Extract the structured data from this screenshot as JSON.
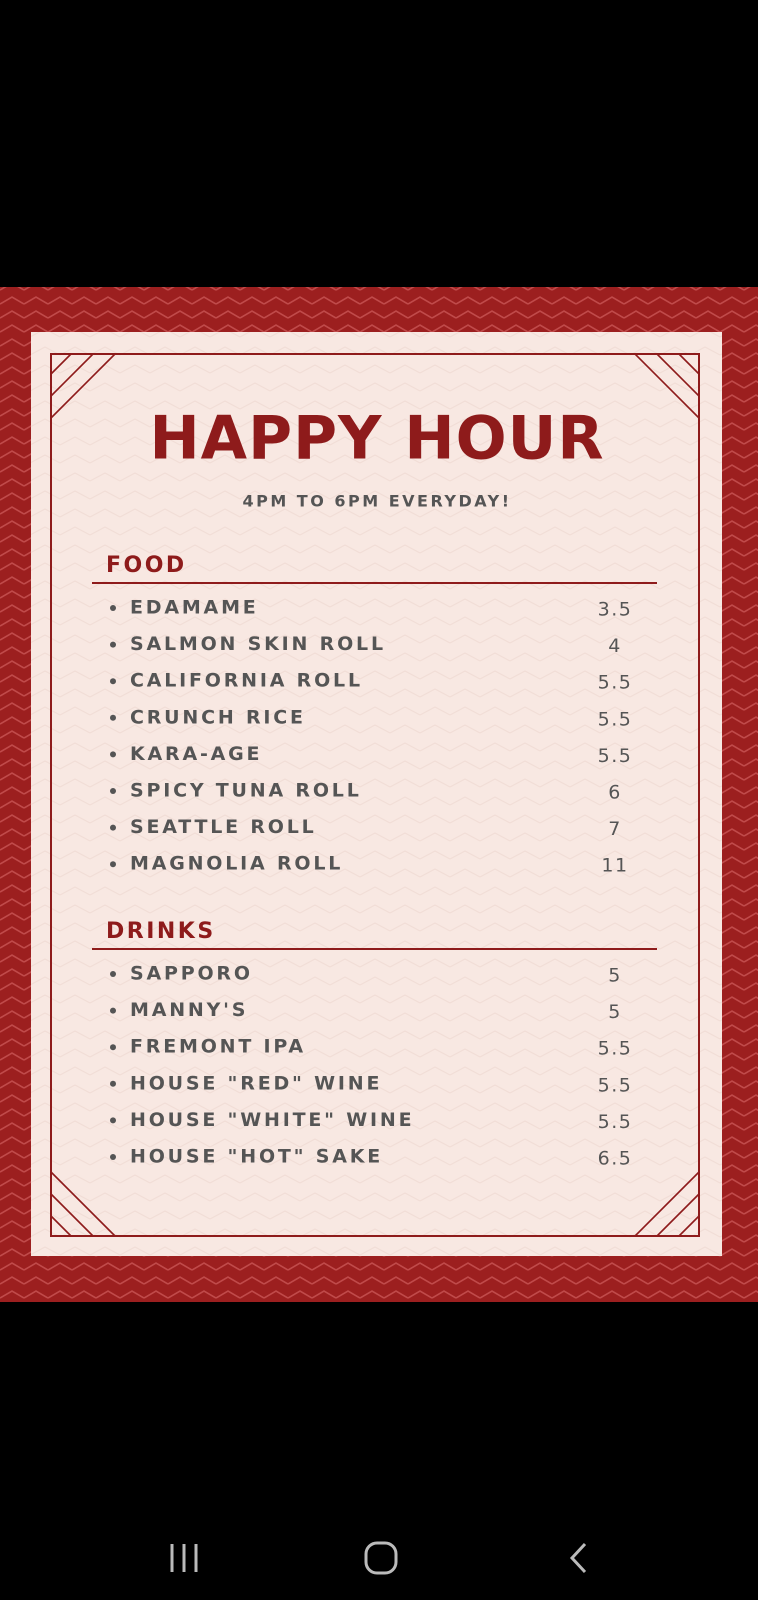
{
  "menu": {
    "title": "HAPPY HOUR",
    "subtitle": "4PM TO 6PM EVERYDAY!",
    "sections": [
      {
        "heading": "FOOD",
        "items": [
          {
            "name": "EDAMAME",
            "price": "3.5"
          },
          {
            "name": "SALMON SKIN ROLL",
            "price": "4"
          },
          {
            "name": "CALIFORNIA ROLL",
            "price": "5.5"
          },
          {
            "name": "CRUNCH RICE",
            "price": "5.5"
          },
          {
            "name": "KARA-AGE",
            "price": "5.5"
          },
          {
            "name": "SPICY TUNA ROLL",
            "price": "6"
          },
          {
            "name": "SEATTLE ROLL",
            "price": "7"
          },
          {
            "name": "MAGNOLIA ROLL",
            "price": "11"
          }
        ]
      },
      {
        "heading": "DRINKS",
        "items": [
          {
            "name": "SAPPORO",
            "price": "5"
          },
          {
            "name": "MANNY'S",
            "price": "5"
          },
          {
            "name": "FREMONT IPA",
            "price": "5.5"
          },
          {
            "name": "HOUSE \"RED\" WINE",
            "price": "5.5"
          },
          {
            "name": "HOUSE \"WHITE\" WINE",
            "price": "5.5"
          },
          {
            "name": "HOUSE \"HOT\" SAKE",
            "price": "6.5"
          }
        ]
      }
    ]
  }
}
